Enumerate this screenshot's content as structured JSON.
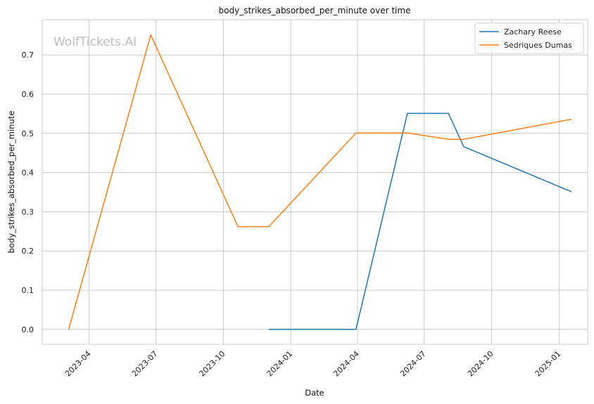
{
  "chart_data": {
    "type": "line",
    "title": "body_strikes_absorbed_per_minute over time",
    "xlabel": "Date",
    "ylabel": "body_strikes_absorbed_per_minute",
    "watermark": "WolfTickets.AI",
    "x_range": [
      "2023-01-27",
      "2025-02-09"
    ],
    "ylim": [
      -0.038,
      0.79
    ],
    "x_ticks": [
      "2023-04-01",
      "2023-07-01",
      "2023-10-01",
      "2024-01-01",
      "2024-04-01",
      "2024-07-01",
      "2024-10-01",
      "2025-01-01"
    ],
    "x_tick_labels": [
      "2023-04",
      "2023-07",
      "2023-10",
      "2024-01",
      "2024-04",
      "2024-07",
      "2024-10",
      "2025-01"
    ],
    "y_ticks": [
      0.0,
      0.1,
      0.2,
      0.3,
      0.4,
      0.5,
      0.6,
      0.7
    ],
    "y_tick_labels": [
      "0.0",
      "0.1",
      "0.2",
      "0.3",
      "0.4",
      "0.5",
      "0.6",
      "0.7"
    ],
    "grid": true,
    "legend_position": "top-right",
    "series": [
      {
        "name": "Zachary Reese",
        "color": "#1f77b4",
        "points": [
          {
            "x": "2023-12-02",
            "y": 0.0
          },
          {
            "x": "2024-03-30",
            "y": 0.0
          },
          {
            "x": "2024-06-08",
            "y": 0.551
          },
          {
            "x": "2024-08-03",
            "y": 0.551
          },
          {
            "x": "2024-08-24",
            "y": 0.466
          },
          {
            "x": "2025-01-18",
            "y": 0.351
          }
        ]
      },
      {
        "name": "Sedriques Dumas",
        "color": "#ff7f0e",
        "points": [
          {
            "x": "2023-03-04",
            "y": 0.0
          },
          {
            "x": "2023-06-24",
            "y": 0.751
          },
          {
            "x": "2023-10-21",
            "y": 0.262
          },
          {
            "x": "2023-12-02",
            "y": 0.262
          },
          {
            "x": "2024-03-30",
            "y": 0.501
          },
          {
            "x": "2024-06-08",
            "y": 0.501
          },
          {
            "x": "2024-08-03",
            "y": 0.485
          },
          {
            "x": "2024-08-24",
            "y": 0.485
          },
          {
            "x": "2025-01-18",
            "y": 0.536
          }
        ]
      }
    ]
  }
}
